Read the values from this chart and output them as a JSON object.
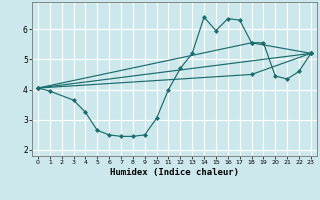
{
  "title": "",
  "xlabel": "Humidex (Indice chaleur)",
  "ylabel": "",
  "bg_color": "#cde8ec",
  "line_color": "#1a6b6b",
  "grid_color": "#ffffff",
  "xlim": [
    -0.5,
    23.5
  ],
  "ylim": [
    1.8,
    6.9
  ],
  "xticks": [
    0,
    1,
    2,
    3,
    4,
    5,
    6,
    7,
    8,
    9,
    10,
    11,
    12,
    13,
    14,
    15,
    16,
    17,
    18,
    19,
    20,
    21,
    22,
    23
  ],
  "yticks": [
    2,
    3,
    4,
    5,
    6
  ],
  "series": [
    {
      "x": [
        0,
        1,
        3,
        4,
        5,
        6,
        7,
        8,
        9,
        10,
        11,
        12,
        13,
        14,
        15,
        16,
        17,
        18,
        19,
        20,
        21,
        22,
        23
      ],
      "y": [
        4.05,
        3.95,
        3.65,
        3.25,
        2.65,
        2.5,
        2.45,
        2.45,
        2.5,
        3.05,
        4.0,
        4.7,
        5.2,
        6.4,
        5.95,
        6.35,
        6.3,
        5.55,
        5.55,
        4.45,
        4.35,
        4.6,
        5.2
      ]
    },
    {
      "x": [
        0,
        23
      ],
      "y": [
        4.05,
        5.2
      ]
    },
    {
      "x": [
        0,
        18,
        23
      ],
      "y": [
        4.05,
        5.55,
        5.2
      ]
    },
    {
      "x": [
        0,
        18,
        23
      ],
      "y": [
        4.05,
        4.5,
        5.2
      ]
    }
  ]
}
